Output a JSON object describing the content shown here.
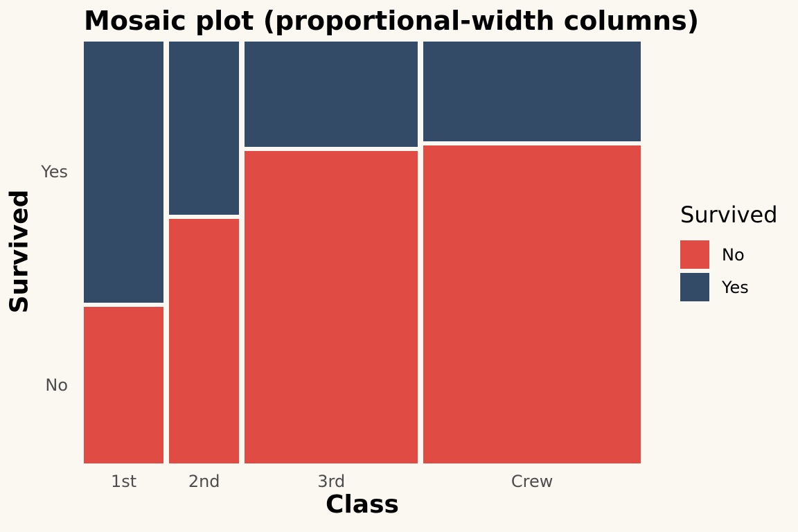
{
  "colors": {
    "background": "#FAF8F1",
    "no_red": "#E04B44",
    "yes_blue": "#344B68",
    "tick_label": "#4D4D4D",
    "text": "#000000"
  },
  "chart_data": {
    "type": "mosaic",
    "title": "Mosaic plot (proportional-width columns)",
    "xlabel": "Class",
    "ylabel": "Survived",
    "categories": [
      "1st",
      "2nd",
      "3rd",
      "Crew"
    ],
    "stack_order_top_to_bottom": [
      "Yes",
      "No"
    ],
    "series": [
      {
        "name": "No",
        "color": "#E04B44",
        "values": [
          122,
          167,
          528,
          673
        ]
      },
      {
        "name": "Yes",
        "color": "#344B68",
        "values": [
          203,
          118,
          178,
          212
        ]
      }
    ],
    "column_totals": [
      325,
      285,
      706,
      885
    ],
    "column_width_shares": [
      0.148,
      0.129,
      0.321,
      0.402
    ],
    "no_fraction_by_class": [
      0.375,
      0.586,
      0.748,
      0.76
    ],
    "y_tick_labels": [
      "Yes",
      "No"
    ],
    "legend": {
      "title": "Survived",
      "position": "right-center",
      "entries": [
        {
          "label": "No",
          "color": "#E04B44"
        },
        {
          "label": "Yes",
          "color": "#344B68"
        }
      ]
    },
    "axes": {
      "grid": false,
      "spines": false
    }
  }
}
